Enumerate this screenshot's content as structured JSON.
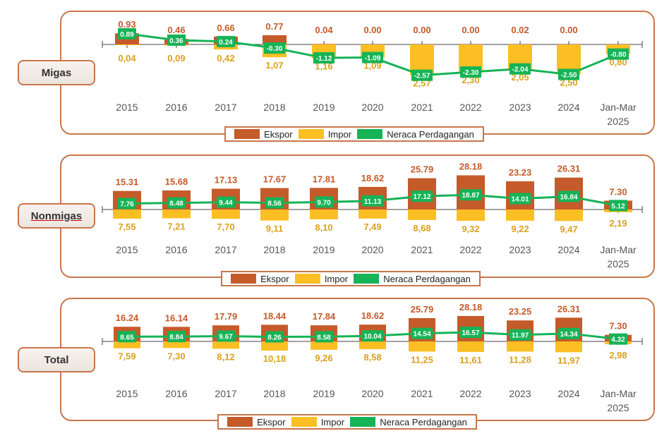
{
  "legend": {
    "ekspor": "Ekspor",
    "impor": "Impor",
    "neraca": "Neraca Perdagangan"
  },
  "colors": {
    "ekspor": "#c55a2a",
    "impor": "#fbbf24",
    "neraca": "#16b357",
    "frame": "#c8764a"
  },
  "chart_data": [
    {
      "type": "bar",
      "title": "Migas",
      "categories": [
        "2015",
        "2016",
        "2017",
        "2018",
        "2019",
        "2020",
        "2021",
        "2022",
        "2023",
        "2024",
        "Jan-Mar 2025"
      ],
      "series": [
        {
          "name": "Ekspor",
          "values": [
            0.93,
            0.46,
            0.66,
            0.77,
            0.04,
            0.0,
            0.0,
            0.0,
            0.02,
            0.0,
            0.0
          ],
          "labels": [
            "0.93",
            "0.46",
            "0.66",
            "0.77",
            "0.04",
            "0.00",
            "0.00",
            "0.00",
            "0.02",
            "0.00",
            ""
          ]
        },
        {
          "name": "Impor",
          "values": [
            0.04,
            0.09,
            0.42,
            1.07,
            1.16,
            1.09,
            2.57,
            2.3,
            2.05,
            2.5,
            0.8
          ],
          "labels": [
            "0,04",
            "0,09",
            "0,42",
            "1,07",
            "1,16",
            "1,09",
            "2,57",
            "2,30",
            "2,05",
            "2,50",
            "0,80"
          ]
        },
        {
          "name": "Neraca Perdagangan",
          "values": [
            0.89,
            0.36,
            0.24,
            -0.3,
            -1.12,
            -1.09,
            -2.57,
            -2.3,
            -2.04,
            -2.5,
            -0.8
          ],
          "labels": [
            "0.89",
            "0.36",
            "0.24",
            "-0.30",
            "-1.12",
            "-1.09",
            "-2.57",
            "-2.30",
            "-2.04",
            "-2.50",
            "-0.80"
          ]
        }
      ]
    },
    {
      "type": "bar",
      "title": "Nonmigas",
      "categories": [
        "2015",
        "2016",
        "2017",
        "2018",
        "2019",
        "2020",
        "2021",
        "2022",
        "2023",
        "2024",
        "Jan-Mar 2025"
      ],
      "series": [
        {
          "name": "Ekspor",
          "values": [
            15.31,
            15.68,
            17.13,
            17.67,
            17.81,
            18.62,
            25.79,
            28.18,
            23.23,
            26.31,
            7.3
          ],
          "labels": [
            "15.31",
            "15.68",
            "17.13",
            "17.67",
            "17.81",
            "18.62",
            "25.79",
            "28.18",
            "23.23",
            "26.31",
            "7.30"
          ]
        },
        {
          "name": "Impor",
          "values": [
            7.55,
            7.21,
            7.7,
            9.11,
            8.1,
            7.49,
            8.68,
            9.32,
            9.22,
            9.47,
            2.19
          ],
          "labels": [
            "7,55",
            "7,21",
            "7,70",
            "9,11",
            "8,10",
            "7,49",
            "8,68",
            "9,32",
            "9,22",
            "9,47",
            "2,19"
          ]
        },
        {
          "name": "Neraca Perdagangan",
          "values": [
            7.76,
            8.48,
            9.44,
            8.56,
            9.7,
            11.13,
            17.12,
            18.87,
            14.01,
            16.84,
            5.12
          ],
          "labels": [
            "7.76",
            "8.48",
            "9.44",
            "8.56",
            "9.70",
            "11.13",
            "17.12",
            "18.87",
            "14.01",
            "16.84",
            "5.12"
          ]
        }
      ]
    },
    {
      "type": "bar",
      "title": "Total",
      "categories": [
        "2015",
        "2016",
        "2017",
        "2018",
        "2019",
        "2020",
        "2021",
        "2022",
        "2023",
        "2024",
        "Jan-Mar 2025"
      ],
      "series": [
        {
          "name": "Ekspor",
          "values": [
            16.24,
            16.14,
            17.79,
            18.44,
            17.84,
            18.62,
            25.79,
            28.18,
            23.25,
            26.31,
            7.3
          ],
          "labels": [
            "16.24",
            "16.14",
            "17.79",
            "18.44",
            "17.84",
            "18.62",
            "25.79",
            "28.18",
            "23.25",
            "26.31",
            "7.30"
          ]
        },
        {
          "name": "Impor",
          "values": [
            7.59,
            7.3,
            8.12,
            10.18,
            9.26,
            8.58,
            11.25,
            11.61,
            11.28,
            11.97,
            2.98
          ],
          "labels": [
            "7,59",
            "7,30",
            "8,12",
            "10,18",
            "9,26",
            "8,58",
            "11,25",
            "11,61",
            "11,28",
            "11,97",
            "2,98"
          ]
        },
        {
          "name": "Neraca Perdagangan",
          "values": [
            8.65,
            8.84,
            9.67,
            8.26,
            8.58,
            10.04,
            14.54,
            16.57,
            11.97,
            14.34,
            4.32
          ],
          "labels": [
            "8.65",
            "8.84",
            "9.67",
            "8.26",
            "8.58",
            "10.04",
            "14.54",
            "16.57",
            "11.97",
            "14.34",
            "4.32"
          ]
        }
      ]
    }
  ]
}
